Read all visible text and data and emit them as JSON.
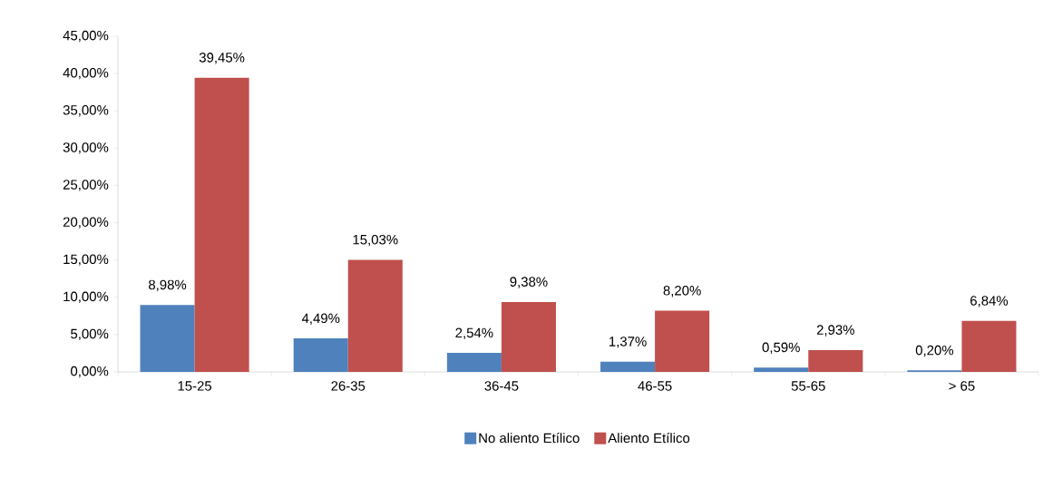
{
  "chart_data": {
    "type": "bar",
    "categories": [
      "15-25",
      "26-35",
      "36-45",
      "46-55",
      "55-65",
      "> 65"
    ],
    "series": [
      {
        "name": "No aliento Etílico",
        "color": "#4f81bd",
        "values": [
          8.98,
          4.49,
          2.54,
          1.37,
          0.59,
          0.2
        ],
        "value_labels": [
          "8,98%",
          "4,49%",
          "2,54%",
          "1,37%",
          "0,59%",
          "0,20%"
        ]
      },
      {
        "name": "Aliento Etílico",
        "color": "#c0504d",
        "values": [
          39.45,
          15.03,
          9.38,
          8.2,
          2.93,
          6.84
        ],
        "value_labels": [
          "39,45%",
          "15,03%",
          "9,38%",
          "8,20%",
          "2,93%",
          "6,84%"
        ]
      }
    ],
    "ylim": [
      0,
      45
    ],
    "yticks": [
      {
        "value": 0,
        "label": "0,00%"
      },
      {
        "value": 5,
        "label": "5,00%"
      },
      {
        "value": 10,
        "label": "10,00%"
      },
      {
        "value": 15,
        "label": "15,00%"
      },
      {
        "value": 20,
        "label": "20,00%"
      },
      {
        "value": 25,
        "label": "25,00%"
      },
      {
        "value": 30,
        "label": "30,00%"
      },
      {
        "value": 35,
        "label": "35,00%"
      },
      {
        "value": 40,
        "label": "40,00%"
      },
      {
        "value": 45,
        "label": "45,00%"
      }
    ],
    "grid": false,
    "legend": "bottom"
  }
}
